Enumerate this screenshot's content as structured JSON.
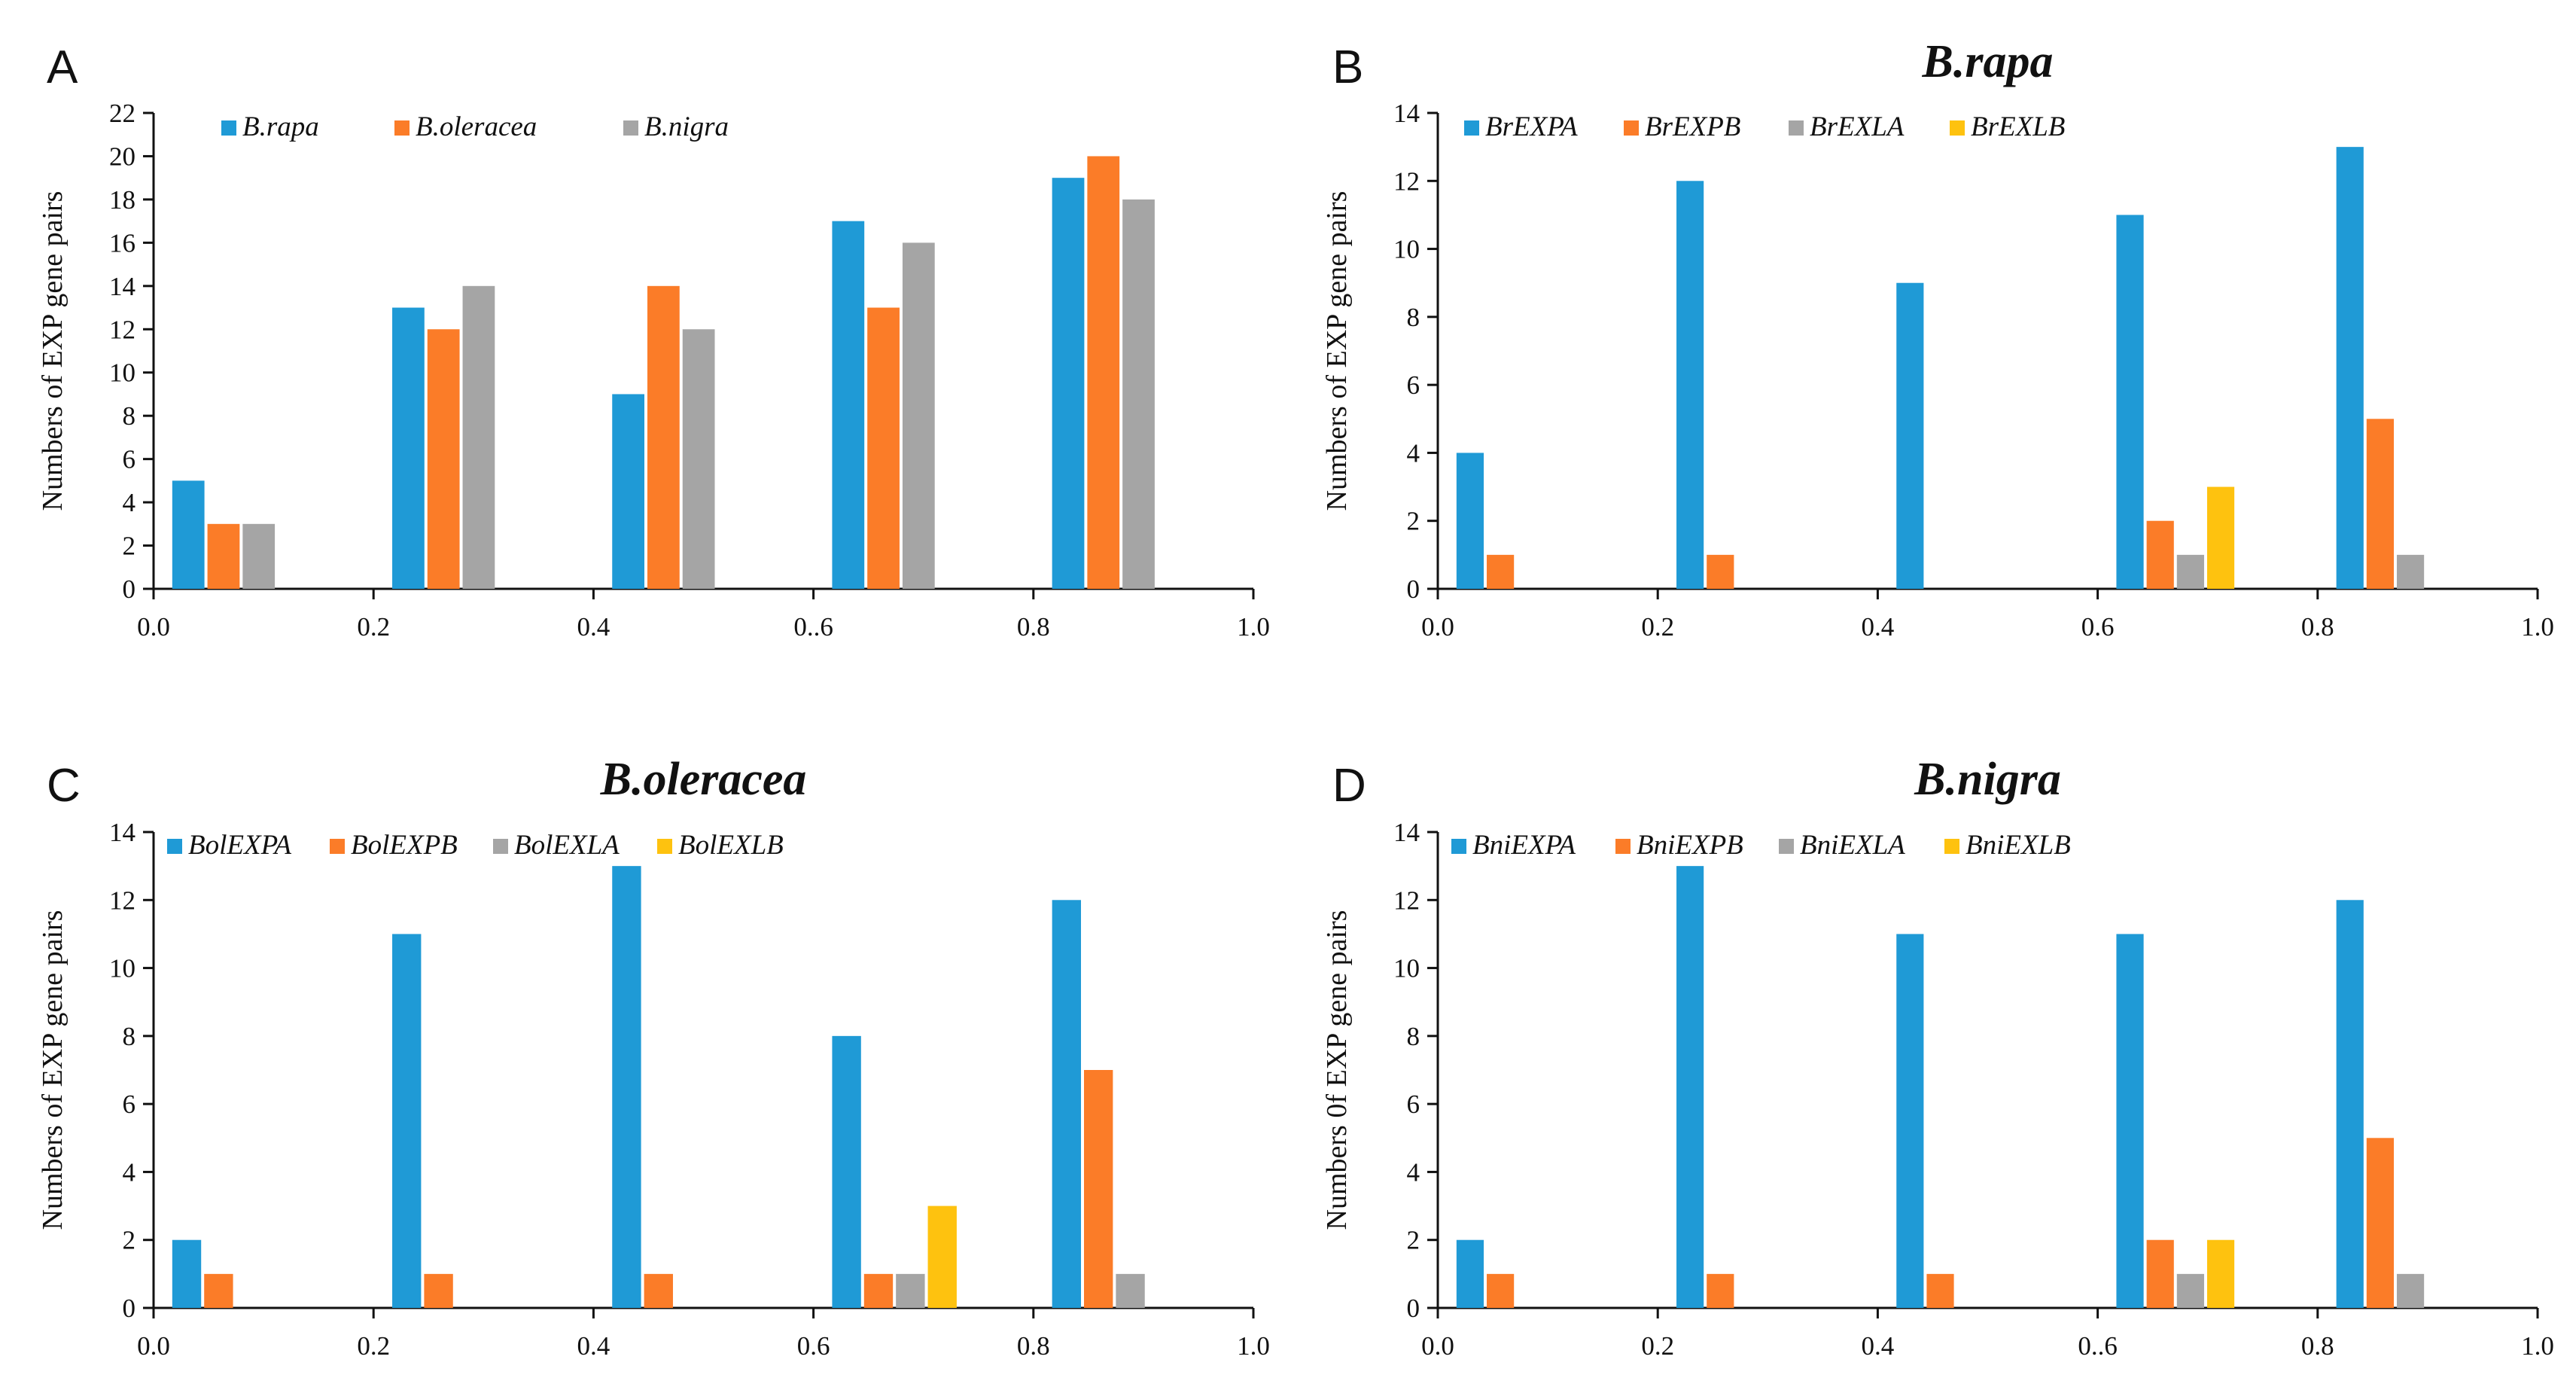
{
  "colors": {
    "blue": "#1f9ad6",
    "orange": "#fb7c28",
    "gray": "#a5a5a5",
    "yellow": "#fec20f"
  },
  "chart_data": [
    {
      "id": "A",
      "panel_label": "A",
      "type": "bar",
      "title": "",
      "xlabel": "",
      "ylabel": "Numbers of EXP gene pairs",
      "ylim": [
        0,
        22
      ],
      "yticks": [
        "0",
        "2",
        "4",
        "6",
        "8",
        "10",
        "12",
        "14",
        "16",
        "18",
        "20",
        "22"
      ],
      "xlim": [
        0,
        1
      ],
      "xticks": [
        "0.0",
        "0.2",
        "0.4",
        "0..6",
        "0.8",
        "1.0"
      ],
      "categories": [
        "0.0-0.2",
        "0.2-0.4",
        "0.4-0.6",
        "0.6-0.8",
        "0.8-1.0"
      ],
      "legend_position": "top-left",
      "series": [
        {
          "name": "B.rapa",
          "color": "blue",
          "values": [
            5,
            13,
            9,
            17,
            19
          ]
        },
        {
          "name": "B.oleracea",
          "color": "orange",
          "values": [
            3,
            12,
            14,
            13,
            20
          ]
        },
        {
          "name": "B.nigra",
          "color": "gray",
          "values": [
            3,
            14,
            12,
            16,
            18
          ]
        }
      ]
    },
    {
      "id": "B",
      "panel_label": "B",
      "type": "bar",
      "title": "B.rapa",
      "xlabel": "",
      "ylabel": "Numbers of  EXP gene pairs",
      "ylim": [
        0,
        14
      ],
      "yticks": [
        "0",
        "2",
        "4",
        "6",
        "8",
        "10",
        "12",
        "14"
      ],
      "xlim": [
        0,
        1
      ],
      "xticks": [
        "0.0",
        "0.2",
        "0.4",
        "0.6",
        "0.8",
        "1.0"
      ],
      "categories": [
        "0.0-0.2",
        "0.2-0.4",
        "0.4-0.6",
        "0.6-0.8",
        "0.8-1.0"
      ],
      "legend_position": "top-left",
      "series": [
        {
          "name": "BrEXPA",
          "color": "blue",
          "values": [
            4,
            12,
            9,
            11,
            13
          ]
        },
        {
          "name": "BrEXPB",
          "color": "orange",
          "values": [
            1,
            1,
            0,
            2,
            5
          ]
        },
        {
          "name": "BrEXLA",
          "color": "gray",
          "values": [
            0,
            0,
            0,
            1,
            1
          ]
        },
        {
          "name": "BrEXLB",
          "color": "yellow",
          "values": [
            0,
            0,
            0,
            3,
            0
          ]
        }
      ]
    },
    {
      "id": "C",
      "panel_label": "C",
      "type": "bar",
      "title": "B.oleracea",
      "xlabel": "",
      "ylabel": "Numbers of EXP gene pairs",
      "ylim": [
        0,
        14
      ],
      "yticks": [
        "0",
        "2",
        "4",
        "6",
        "8",
        "10",
        "12",
        "14"
      ],
      "xlim": [
        0,
        1
      ],
      "xticks": [
        "0.0",
        "0.2",
        "0.4",
        "0.6",
        "0.8",
        "1.0"
      ],
      "categories": [
        "0.0-0.2",
        "0.2-0.4",
        "0.4-0.6",
        "0.6-0.8",
        "0.8-1.0"
      ],
      "legend_position": "top-left",
      "series": [
        {
          "name": "BolEXPA",
          "color": "blue",
          "values": [
            2,
            11,
            13,
            8,
            12
          ]
        },
        {
          "name": "BolEXPB",
          "color": "orange",
          "values": [
            1,
            1,
            1,
            1,
            7
          ]
        },
        {
          "name": "BolEXLA",
          "color": "gray",
          "values": [
            0,
            0,
            0,
            1,
            1
          ]
        },
        {
          "name": "BolEXLB",
          "color": "yellow",
          "values": [
            0,
            0,
            0,
            3,
            0
          ]
        }
      ]
    },
    {
      "id": "D",
      "panel_label": "D",
      "type": "bar",
      "title": "B.nigra",
      "xlabel": "",
      "ylabel": "Numbers 0f EXP gene pairs",
      "ylim": [
        0,
        14
      ],
      "yticks": [
        "0",
        "2",
        "4",
        "6",
        "8",
        "10",
        "12",
        "14"
      ],
      "xlim": [
        0,
        1
      ],
      "xticks": [
        "0.0",
        "0.2",
        "0.4",
        "0..6",
        "0.8",
        "1.0"
      ],
      "categories": [
        "0.0-0.2",
        "0.2-0.4",
        "0.4-0.6",
        "0.6-0.8",
        "0.8-1.0"
      ],
      "legend_position": "top-left",
      "series": [
        {
          "name": "BniEXPA",
          "color": "blue",
          "values": [
            2,
            13,
            11,
            11,
            12
          ]
        },
        {
          "name": "BniEXPB",
          "color": "orange",
          "values": [
            1,
            1,
            1,
            2,
            5
          ]
        },
        {
          "name": "BniEXLA",
          "color": "gray",
          "values": [
            0,
            0,
            0,
            1,
            1
          ]
        },
        {
          "name": "BniEXLB",
          "color": "yellow",
          "values": [
            0,
            0,
            0,
            2,
            0
          ]
        }
      ]
    }
  ]
}
